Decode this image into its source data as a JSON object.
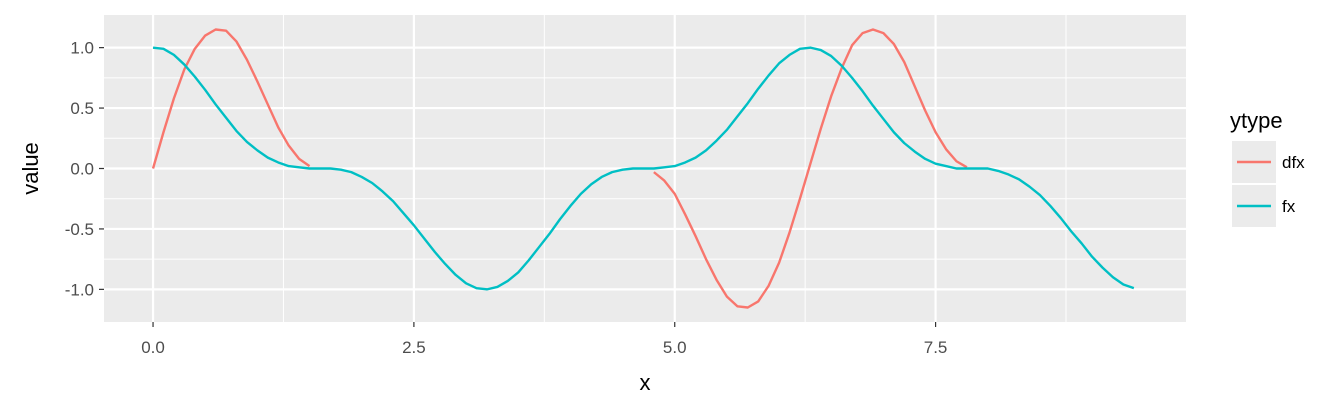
{
  "chart_data": {
    "type": "line",
    "title": "",
    "xlabel": "x",
    "ylabel": "value",
    "xlim": [
      -0.47,
      9.9
    ],
    "ylim": [
      -1.27,
      1.27
    ],
    "x_ticks": [
      0.0,
      2.5,
      5.0,
      7.5
    ],
    "x_tick_labels": [
      "0.0",
      "2.5",
      "5.0",
      "7.5"
    ],
    "x_minor_ticks": [
      1.25,
      3.75,
      6.25,
      8.75
    ],
    "y_ticks": [
      1.0,
      0.5,
      0.0,
      -0.5,
      -1.0
    ],
    "y_tick_labels": [
      "1.0",
      "0.5",
      "0.0",
      "-0.5",
      "-1.0"
    ],
    "y_minor_ticks": [
      0.75,
      0.25,
      -0.25,
      -0.75
    ],
    "grid": true,
    "background": "#ebebeb",
    "legend": {
      "title": "ytype",
      "position": "right",
      "entries": [
        "dfx",
        "fx"
      ]
    },
    "series": [
      {
        "name": "dfx",
        "color": "#f8766d",
        "segments": [
          {
            "x": [
              0.0,
              0.1,
              0.2,
              0.3,
              0.4,
              0.5,
              0.6,
              0.7,
              0.8,
              0.9,
              1.0,
              1.1,
              1.2,
              1.3,
              1.4,
              1.5
            ],
            "y": [
              0.0,
              0.3,
              0.58,
              0.82,
              0.99,
              1.1,
              1.15,
              1.14,
              1.05,
              0.9,
              0.72,
              0.53,
              0.34,
              0.19,
              0.08,
              0.02
            ]
          },
          {
            "x": [
              4.8,
              4.9,
              5.0,
              5.1,
              5.2,
              5.3,
              5.4,
              5.5,
              5.6,
              5.7,
              5.8,
              5.9,
              6.0,
              6.1,
              6.2,
              6.3,
              6.4,
              6.5,
              6.6,
              6.7,
              6.8,
              6.9,
              7.0,
              7.1,
              7.2,
              7.3,
              7.4,
              7.5,
              7.6,
              7.7,
              7.8
            ],
            "y": [
              -0.03,
              -0.1,
              -0.21,
              -0.38,
              -0.56,
              -0.75,
              -0.92,
              -1.06,
              -1.14,
              -1.15,
              -1.1,
              -0.97,
              -0.78,
              -0.53,
              -0.25,
              0.04,
              0.33,
              0.6,
              0.83,
              1.02,
              1.12,
              1.15,
              1.12,
              1.03,
              0.88,
              0.68,
              0.48,
              0.3,
              0.16,
              0.06,
              0.01
            ]
          }
        ]
      },
      {
        "name": "fx",
        "color": "#00bfc4",
        "segments": [
          {
            "x": [
              0.0,
              0.1,
              0.2,
              0.3,
              0.4,
              0.5,
              0.6,
              0.7,
              0.8,
              0.9,
              1.0,
              1.1,
              1.2,
              1.3,
              1.4,
              1.5,
              1.6,
              1.7,
              1.8,
              1.9,
              2.0,
              2.1,
              2.2,
              2.3,
              2.4,
              2.5,
              2.6,
              2.7,
              2.8,
              2.9,
              3.0,
              3.1,
              3.2,
              3.3,
              3.4,
              3.5,
              3.6,
              3.7,
              3.8,
              3.9,
              4.0,
              4.1,
              4.2,
              4.3,
              4.4,
              4.5,
              4.6,
              4.7,
              4.8,
              4.9,
              5.0,
              5.1,
              5.2,
              5.3,
              5.4,
              5.5,
              5.6,
              5.7,
              5.8,
              5.9,
              6.0,
              6.1,
              6.2,
              6.3,
              6.4,
              6.5,
              6.6,
              6.7,
              6.8,
              6.9,
              7.0,
              7.1,
              7.2,
              7.3,
              7.4,
              7.5,
              7.6,
              7.7,
              7.8,
              7.9,
              8.0,
              8.1,
              8.2,
              8.3,
              8.4,
              8.5,
              8.6,
              8.7,
              8.8,
              8.9,
              9.0,
              9.1,
              9.2,
              9.3,
              9.4
            ],
            "y": [
              1.0,
              0.99,
              0.94,
              0.86,
              0.76,
              0.65,
              0.53,
              0.42,
              0.31,
              0.22,
              0.15,
              0.09,
              0.05,
              0.02,
              0.01,
              0.0,
              0.0,
              0.0,
              -0.01,
              -0.03,
              -0.07,
              -0.12,
              -0.19,
              -0.27,
              -0.37,
              -0.47,
              -0.58,
              -0.69,
              -0.79,
              -0.88,
              -0.95,
              -0.99,
              -1.0,
              -0.98,
              -0.93,
              -0.86,
              -0.76,
              -0.65,
              -0.54,
              -0.42,
              -0.31,
              -0.21,
              -0.13,
              -0.07,
              -0.03,
              -0.01,
              0.0,
              0.0,
              0.0,
              0.01,
              0.02,
              0.05,
              0.09,
              0.15,
              0.23,
              0.32,
              0.43,
              0.54,
              0.66,
              0.77,
              0.87,
              0.94,
              0.99,
              1.0,
              0.98,
              0.93,
              0.85,
              0.75,
              0.64,
              0.52,
              0.41,
              0.3,
              0.21,
              0.14,
              0.08,
              0.04,
              0.02,
              0.0,
              0.0,
              0.0,
              0.0,
              -0.02,
              -0.05,
              -0.09,
              -0.15,
              -0.22,
              -0.31,
              -0.41,
              -0.52,
              -0.62,
              -0.73,
              -0.82,
              -0.9,
              -0.96,
              -0.99
            ]
          }
        ]
      }
    ]
  }
}
